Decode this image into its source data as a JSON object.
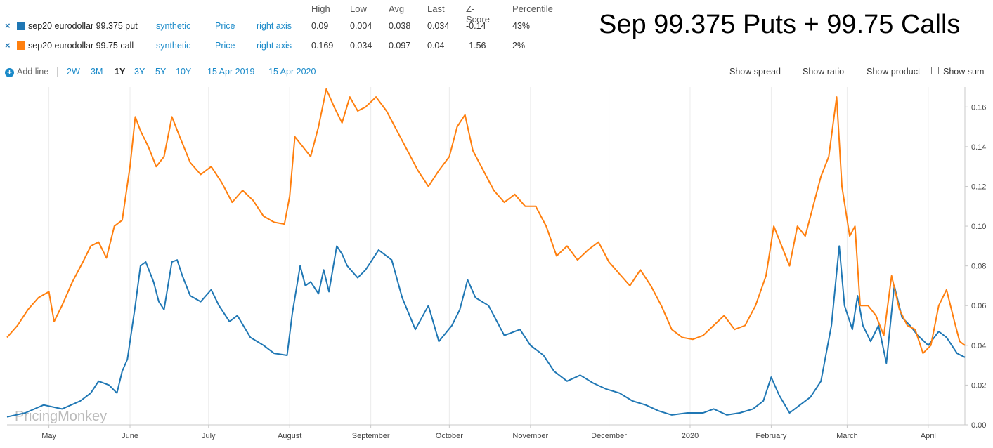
{
  "header": {
    "columns": [
      "High",
      "Low",
      "Avg",
      "Last",
      "Z-Score",
      "Percentile"
    ]
  },
  "series_rows": [
    {
      "remove": "×",
      "name": "sep20 eurodollar 99.375 put",
      "color": "#1f77b4",
      "type": "synthetic",
      "field": "Price",
      "axis": "right axis",
      "high": "0.09",
      "low": "0.004",
      "avg": "0.038",
      "last": "0.034",
      "zscore": "-0.14",
      "percentile": "43%"
    },
    {
      "remove": "×",
      "name": "sep20 eurodollar 99.75 call",
      "color": "#ff7f0e",
      "type": "synthetic",
      "field": "Price",
      "axis": "right axis",
      "high": "0.169",
      "low": "0.034",
      "avg": "0.097",
      "last": "0.04",
      "zscore": "-1.56",
      "percentile": "2%"
    }
  ],
  "title": "Sep 99.375 Puts + 99.75 Calls",
  "toolbar": {
    "add_line": "Add line",
    "add_icon": "plus-circle-icon",
    "ranges": [
      "2W",
      "3M",
      "1Y",
      "3Y",
      "5Y",
      "10Y"
    ],
    "active_range": "1Y",
    "date_from": "15 Apr 2019",
    "date_sep": "–",
    "date_to": "15 Apr 2020",
    "checkboxes": [
      "Show spread",
      "Show ratio",
      "Show product",
      "Show sum"
    ]
  },
  "watermark": "PricingMonkey",
  "chart_data": {
    "type": "line",
    "x_domain": [
      "2019-04-15",
      "2020-04-15"
    ],
    "x_tick_labels": [
      {
        "date": "2019-05-01",
        "label": "May"
      },
      {
        "date": "2019-06-01",
        "label": "June"
      },
      {
        "date": "2019-07-01",
        "label": "July"
      },
      {
        "date": "2019-08-01",
        "label": "August"
      },
      {
        "date": "2019-09-01",
        "label": "September"
      },
      {
        "date": "2019-10-01",
        "label": "October"
      },
      {
        "date": "2019-11-01",
        "label": "November"
      },
      {
        "date": "2019-12-01",
        "label": "December"
      },
      {
        "date": "2020-01-01",
        "label": "2020"
      },
      {
        "date": "2020-02-01",
        "label": "February"
      },
      {
        "date": "2020-03-01",
        "label": "March"
      },
      {
        "date": "2020-04-01",
        "label": "April"
      }
    ],
    "y_axis": "right",
    "ylim": [
      0,
      0.17
    ],
    "y_ticks": [
      "0.00",
      "0.02",
      "0.04",
      "0.06",
      "0.08",
      "0.10",
      "0.12",
      "0.14",
      "0.16"
    ],
    "grid": "vertical lines at month ticks",
    "series": [
      {
        "name": "sep20 eurodollar 99.375 put",
        "color": "#1f77b4",
        "points": [
          [
            "2019-04-15",
            0.004
          ],
          [
            "2019-04-22",
            0.006
          ],
          [
            "2019-04-29",
            0.01
          ],
          [
            "2019-05-06",
            0.008
          ],
          [
            "2019-05-13",
            0.012
          ],
          [
            "2019-05-17",
            0.016
          ],
          [
            "2019-05-20",
            0.022
          ],
          [
            "2019-05-24",
            0.02
          ],
          [
            "2019-05-27",
            0.016
          ],
          [
            "2019-05-29",
            0.027
          ],
          [
            "2019-05-31",
            0.033
          ],
          [
            "2019-06-03",
            0.06
          ],
          [
            "2019-06-05",
            0.08
          ],
          [
            "2019-06-07",
            0.082
          ],
          [
            "2019-06-10",
            0.072
          ],
          [
            "2019-06-12",
            0.062
          ],
          [
            "2019-06-14",
            0.058
          ],
          [
            "2019-06-17",
            0.082
          ],
          [
            "2019-06-19",
            0.083
          ],
          [
            "2019-06-21",
            0.075
          ],
          [
            "2019-06-24",
            0.065
          ],
          [
            "2019-06-28",
            0.062
          ],
          [
            "2019-07-02",
            0.068
          ],
          [
            "2019-07-05",
            0.06
          ],
          [
            "2019-07-09",
            0.052
          ],
          [
            "2019-07-12",
            0.055
          ],
          [
            "2019-07-17",
            0.044
          ],
          [
            "2019-07-22",
            0.04
          ],
          [
            "2019-07-26",
            0.036
          ],
          [
            "2019-07-31",
            0.035
          ],
          [
            "2019-08-02",
            0.056
          ],
          [
            "2019-08-05",
            0.08
          ],
          [
            "2019-08-07",
            0.07
          ],
          [
            "2019-08-09",
            0.072
          ],
          [
            "2019-08-12",
            0.066
          ],
          [
            "2019-08-14",
            0.078
          ],
          [
            "2019-08-16",
            0.067
          ],
          [
            "2019-08-19",
            0.09
          ],
          [
            "2019-08-21",
            0.086
          ],
          [
            "2019-08-23",
            0.08
          ],
          [
            "2019-08-27",
            0.074
          ],
          [
            "2019-08-30",
            0.078
          ],
          [
            "2019-09-04",
            0.088
          ],
          [
            "2019-09-09",
            0.083
          ],
          [
            "2019-09-13",
            0.064
          ],
          [
            "2019-09-18",
            0.048
          ],
          [
            "2019-09-23",
            0.06
          ],
          [
            "2019-09-27",
            0.042
          ],
          [
            "2019-10-02",
            0.05
          ],
          [
            "2019-10-05",
            0.058
          ],
          [
            "2019-10-08",
            0.073
          ],
          [
            "2019-10-11",
            0.064
          ],
          [
            "2019-10-16",
            0.06
          ],
          [
            "2019-10-22",
            0.045
          ],
          [
            "2019-10-28",
            0.048
          ],
          [
            "2019-11-01",
            0.04
          ],
          [
            "2019-11-06",
            0.035
          ],
          [
            "2019-11-10",
            0.027
          ],
          [
            "2019-11-15",
            0.022
          ],
          [
            "2019-11-20",
            0.025
          ],
          [
            "2019-11-25",
            0.021
          ],
          [
            "2019-11-30",
            0.018
          ],
          [
            "2019-12-05",
            0.016
          ],
          [
            "2019-12-10",
            0.012
          ],
          [
            "2019-12-15",
            0.01
          ],
          [
            "2019-12-20",
            0.007
          ],
          [
            "2019-12-25",
            0.005
          ],
          [
            "2019-12-31",
            0.006
          ],
          [
            "2020-01-06",
            0.006
          ],
          [
            "2020-01-10",
            0.008
          ],
          [
            "2020-01-15",
            0.005
          ],
          [
            "2020-01-20",
            0.006
          ],
          [
            "2020-01-25",
            0.008
          ],
          [
            "2020-01-29",
            0.012
          ],
          [
            "2020-02-01",
            0.024
          ],
          [
            "2020-02-04",
            0.015
          ],
          [
            "2020-02-08",
            0.006
          ],
          [
            "2020-02-12",
            0.01
          ],
          [
            "2020-02-16",
            0.014
          ],
          [
            "2020-02-20",
            0.022
          ],
          [
            "2020-02-24",
            0.05
          ],
          [
            "2020-02-27",
            0.09
          ],
          [
            "2020-02-29",
            0.06
          ],
          [
            "2020-03-03",
            0.048
          ],
          [
            "2020-03-05",
            0.065
          ],
          [
            "2020-03-07",
            0.05
          ],
          [
            "2020-03-10",
            0.042
          ],
          [
            "2020-03-13",
            0.05
          ],
          [
            "2020-03-16",
            0.031
          ],
          [
            "2020-03-19",
            0.07
          ],
          [
            "2020-03-22",
            0.054
          ],
          [
            "2020-03-25",
            0.05
          ],
          [
            "2020-03-28",
            0.045
          ],
          [
            "2020-04-01",
            0.04
          ],
          [
            "2020-04-05",
            0.047
          ],
          [
            "2020-04-08",
            0.044
          ],
          [
            "2020-04-12",
            0.036
          ],
          [
            "2020-04-15",
            0.034
          ]
        ]
      },
      {
        "name": "sep20 eurodollar 99.75 call",
        "color": "#ff7f0e",
        "points": [
          [
            "2019-04-15",
            0.044
          ],
          [
            "2019-04-19",
            0.05
          ],
          [
            "2019-04-23",
            0.058
          ],
          [
            "2019-04-27",
            0.064
          ],
          [
            "2019-05-01",
            0.067
          ],
          [
            "2019-05-03",
            0.052
          ],
          [
            "2019-05-06",
            0.06
          ],
          [
            "2019-05-10",
            0.072
          ],
          [
            "2019-05-14",
            0.082
          ],
          [
            "2019-05-17",
            0.09
          ],
          [
            "2019-05-20",
            0.092
          ],
          [
            "2019-05-23",
            0.084
          ],
          [
            "2019-05-26",
            0.1
          ],
          [
            "2019-05-29",
            0.103
          ],
          [
            "2019-06-01",
            0.13
          ],
          [
            "2019-06-03",
            0.155
          ],
          [
            "2019-06-05",
            0.148
          ],
          [
            "2019-06-08",
            0.14
          ],
          [
            "2019-06-11",
            0.13
          ],
          [
            "2019-06-14",
            0.135
          ],
          [
            "2019-06-17",
            0.155
          ],
          [
            "2019-06-20",
            0.145
          ],
          [
            "2019-06-24",
            0.132
          ],
          [
            "2019-06-28",
            0.126
          ],
          [
            "2019-07-02",
            0.13
          ],
          [
            "2019-07-06",
            0.122
          ],
          [
            "2019-07-10",
            0.112
          ],
          [
            "2019-07-14",
            0.118
          ],
          [
            "2019-07-18",
            0.113
          ],
          [
            "2019-07-22",
            0.105
          ],
          [
            "2019-07-26",
            0.102
          ],
          [
            "2019-07-30",
            0.101
          ],
          [
            "2019-08-01",
            0.115
          ],
          [
            "2019-08-03",
            0.145
          ],
          [
            "2019-08-06",
            0.14
          ],
          [
            "2019-08-09",
            0.135
          ],
          [
            "2019-08-12",
            0.15
          ],
          [
            "2019-08-15",
            0.169
          ],
          [
            "2019-08-18",
            0.16
          ],
          [
            "2019-08-21",
            0.152
          ],
          [
            "2019-08-24",
            0.165
          ],
          [
            "2019-08-27",
            0.158
          ],
          [
            "2019-08-30",
            0.16
          ],
          [
            "2019-09-03",
            0.165
          ],
          [
            "2019-09-07",
            0.158
          ],
          [
            "2019-09-11",
            0.148
          ],
          [
            "2019-09-15",
            0.138
          ],
          [
            "2019-09-19",
            0.128
          ],
          [
            "2019-09-23",
            0.12
          ],
          [
            "2019-09-27",
            0.128
          ],
          [
            "2019-10-01",
            0.135
          ],
          [
            "2019-10-04",
            0.15
          ],
          [
            "2019-10-07",
            0.156
          ],
          [
            "2019-10-10",
            0.138
          ],
          [
            "2019-10-14",
            0.128
          ],
          [
            "2019-10-18",
            0.118
          ],
          [
            "2019-10-22",
            0.112
          ],
          [
            "2019-10-26",
            0.116
          ],
          [
            "2019-10-30",
            0.11
          ],
          [
            "2019-11-03",
            0.11
          ],
          [
            "2019-11-07",
            0.1
          ],
          [
            "2019-11-11",
            0.085
          ],
          [
            "2019-11-15",
            0.09
          ],
          [
            "2019-11-19",
            0.083
          ],
          [
            "2019-11-23",
            0.088
          ],
          [
            "2019-11-27",
            0.092
          ],
          [
            "2019-12-01",
            0.082
          ],
          [
            "2019-12-05",
            0.076
          ],
          [
            "2019-12-09",
            0.07
          ],
          [
            "2019-12-13",
            0.078
          ],
          [
            "2019-12-17",
            0.07
          ],
          [
            "2019-12-21",
            0.06
          ],
          [
            "2019-12-25",
            0.048
          ],
          [
            "2019-12-29",
            0.044
          ],
          [
            "2020-01-02",
            0.043
          ],
          [
            "2020-01-06",
            0.045
          ],
          [
            "2020-01-10",
            0.05
          ],
          [
            "2020-01-14",
            0.055
          ],
          [
            "2020-01-18",
            0.048
          ],
          [
            "2020-01-22",
            0.05
          ],
          [
            "2020-01-26",
            0.06
          ],
          [
            "2020-01-30",
            0.075
          ],
          [
            "2020-02-02",
            0.1
          ],
          [
            "2020-02-05",
            0.09
          ],
          [
            "2020-02-08",
            0.08
          ],
          [
            "2020-02-11",
            0.1
          ],
          [
            "2020-02-14",
            0.095
          ],
          [
            "2020-02-17",
            0.11
          ],
          [
            "2020-02-20",
            0.125
          ],
          [
            "2020-02-23",
            0.135
          ],
          [
            "2020-02-26",
            0.165
          ],
          [
            "2020-02-28",
            0.12
          ],
          [
            "2020-03-02",
            0.095
          ],
          [
            "2020-03-04",
            0.1
          ],
          [
            "2020-03-06",
            0.06
          ],
          [
            "2020-03-09",
            0.06
          ],
          [
            "2020-03-12",
            0.055
          ],
          [
            "2020-03-15",
            0.045
          ],
          [
            "2020-03-18",
            0.075
          ],
          [
            "2020-03-21",
            0.058
          ],
          [
            "2020-03-24",
            0.05
          ],
          [
            "2020-03-27",
            0.048
          ],
          [
            "2020-03-30",
            0.036
          ],
          [
            "2020-04-02",
            0.04
          ],
          [
            "2020-04-05",
            0.06
          ],
          [
            "2020-04-08",
            0.068
          ],
          [
            "2020-04-11",
            0.052
          ],
          [
            "2020-04-13",
            0.042
          ],
          [
            "2020-04-15",
            0.04
          ]
        ]
      }
    ]
  }
}
